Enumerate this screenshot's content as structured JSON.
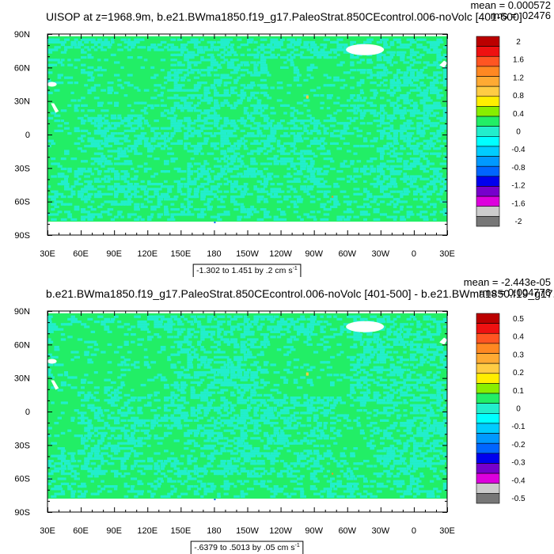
{
  "chart_data": [
    {
      "type": "heatmap",
      "title": "UISOP at z=1968.9m, b.e21.BWma1850.f19_g17.PaleoStrat.850CEcontrol.006-noVolc [401-500]",
      "mean_text": "mean = 0.000572",
      "rms_text": "rms = .02476",
      "contour_info": "-1.302 to 1.451 by .2 cm s",
      "contour_info_sup": "-1",
      "x_tick_labels": [
        "30E",
        "60E",
        "90E",
        "120E",
        "150E",
        "180",
        "150W",
        "120W",
        "90W",
        "60W",
        "30W",
        "0",
        "30E"
      ],
      "y_tick_labels": [
        "90N",
        "60N",
        "30N",
        "0",
        "30S",
        "60S",
        "90S"
      ],
      "colorbar_labels": [
        "2",
        "1.6",
        "1.2",
        "0.8",
        "0.4",
        "0",
        "-0.4",
        "-0.8",
        "-1.2",
        "-1.6",
        "-2"
      ],
      "xlim": [
        30,
        390
      ],
      "ylim": [
        -90,
        90
      ]
    },
    {
      "type": "heatmap",
      "title": "b.e21.BWma1850.f19_g17.PaleoStrat.850CEcontrol.006-noVolc [401-500] - b.e21.BWma1850.f19_g17.",
      "mean_text": "mean = -2.443e-05",
      "rms_text": "rms = 0.004776",
      "contour_info": "-.6379 to .5013 by .05 cm s",
      "contour_info_sup": "-1",
      "x_tick_labels": [
        "30E",
        "60E",
        "90E",
        "120E",
        "150E",
        "180",
        "150W",
        "120W",
        "90W",
        "60W",
        "30W",
        "0",
        "30E"
      ],
      "y_tick_labels": [
        "90N",
        "60N",
        "30N",
        "0",
        "30S",
        "60S",
        "90S"
      ],
      "colorbar_labels": [
        "0.5",
        "0.4",
        "0.3",
        "0.2",
        "0.1",
        "0",
        "-0.1",
        "-0.2",
        "-0.3",
        "-0.4",
        "-0.5"
      ],
      "xlim": [
        30,
        390
      ],
      "ylim": [
        -90,
        90
      ]
    }
  ],
  "colors": {
    "field_base": "#22ee66",
    "field_light": "#22eecc",
    "land_white": "#ffffff",
    "colorbar": [
      "#bb0000",
      "#ee1111",
      "#ff5522",
      "#ff8822",
      "#ffaa33",
      "#ffcc44",
      "#ffee00",
      "#88ee00",
      "#22ee66",
      "#22eecc",
      "#00ffff",
      "#00ccff",
      "#0099ff",
      "#0066ff",
      "#0000ee",
      "#7700cc",
      "#dd00dd",
      "#cccccc",
      "#777777"
    ]
  }
}
